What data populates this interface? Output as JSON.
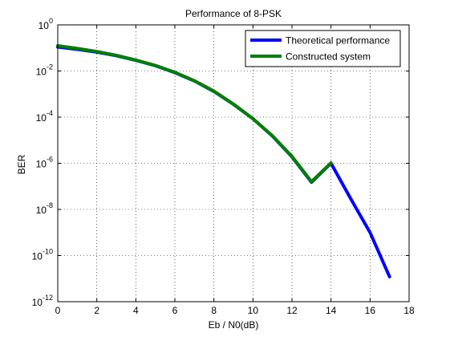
{
  "chart_data": {
    "type": "line",
    "title": "Performance of 8-PSK",
    "xlabel": "Eb / N0(dB)",
    "ylabel": "BER",
    "xlim": [
      0,
      18
    ],
    "ylim": [
      1e-12,
      1
    ],
    "yscale": "log",
    "grid": true,
    "grid_style": "dotted",
    "legend_position": "top-right",
    "x_ticks": [
      0,
      2,
      4,
      6,
      8,
      10,
      12,
      14,
      16,
      18
    ],
    "x_tick_labels": [
      "0",
      "2",
      "4",
      "6",
      "8",
      "10",
      "12",
      "14",
      "16",
      "18"
    ],
    "y_tick_exponents": [
      0,
      -2,
      -4,
      -6,
      -8,
      -10,
      -12
    ],
    "y_tick_labels": [
      "10^0",
      "10^-2",
      "10^-4",
      "10^-6",
      "10^-8",
      "10^-10",
      "10^-12"
    ],
    "series": [
      {
        "name": "Theoretical performance",
        "color": "#0000ff",
        "x": [
          0,
          1,
          2,
          3,
          4,
          5,
          6,
          7,
          8,
          9,
          10,
          11,
          12,
          13,
          14,
          15,
          16,
          17
        ],
        "y": [
          0.11,
          0.087,
          0.066,
          0.046,
          0.029,
          0.017,
          0.0085,
          0.0037,
          0.0013,
          0.00036,
          8.5e-05,
          1.5e-05,
          1.9e-06,
          1.5e-07,
          1e-06,
          3e-08,
          1e-09,
          1.2e-11
        ]
      },
      {
        "name": "Constructed system",
        "color": "#008000",
        "x": [
          0,
          1,
          2,
          3,
          4,
          5,
          6,
          7,
          8,
          9,
          10,
          11,
          12,
          13,
          14
        ],
        "y": [
          0.125,
          0.095,
          0.07,
          0.048,
          0.03,
          0.0175,
          0.0088,
          0.0038,
          0.00135,
          0.00037,
          8.6e-05,
          1.55e-05,
          2e-06,
          1.6e-07,
          1.05e-06
        ]
      }
    ]
  }
}
